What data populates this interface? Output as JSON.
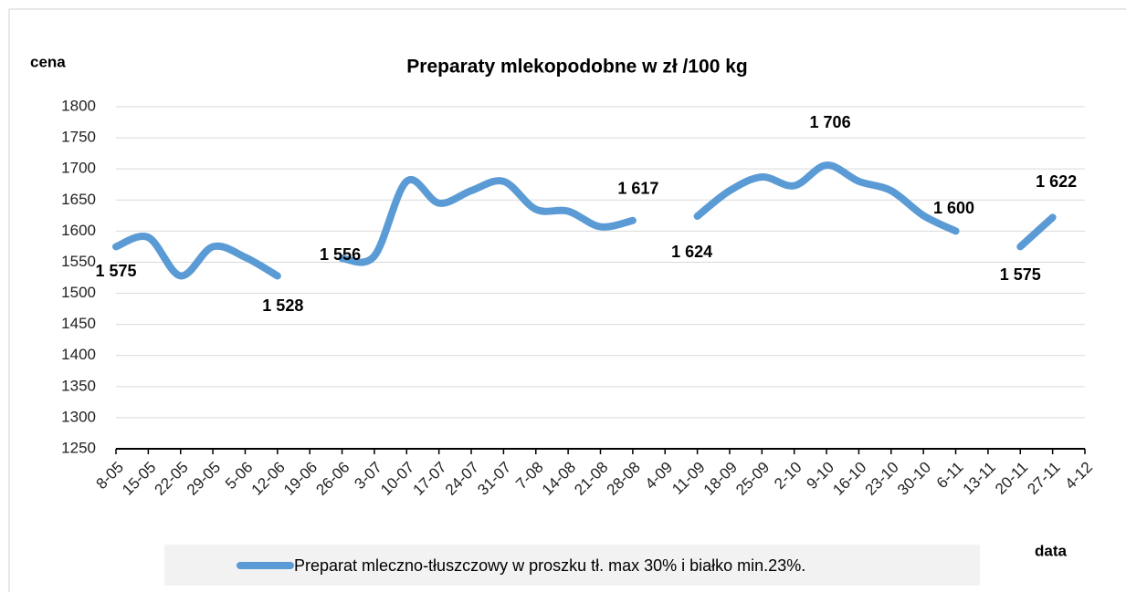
{
  "chart_data": {
    "type": "line",
    "title": "Preparaty mlekopodobne w zł /100 kg",
    "y_label": "cena",
    "x_label": "data",
    "categories": [
      "8-05",
      "15-05",
      "22-05",
      "29-05",
      "5-06",
      "12-06",
      "19-06",
      "26-06",
      "3-07",
      "10-07",
      "17-07",
      "24-07",
      "31-07",
      "7-08",
      "14-08",
      "21-08",
      "28-08",
      "4-09",
      "11-09",
      "18-09",
      "25-09",
      "2-10",
      "9-10",
      "16-10",
      "23-10",
      "30-10",
      "6-11",
      "13-11",
      "20-11",
      "27-11",
      "4-12"
    ],
    "series": [
      {
        "name": "Preparat mleczno-tłuszczowy w proszku tł. max 30% i białko min.23%.",
        "color": "#5b9bd5",
        "values": [
          1575,
          1590,
          1528,
          1575,
          1558,
          1528,
          null,
          1556,
          1560,
          1680,
          1645,
          1665,
          1680,
          1635,
          1632,
          1607,
          1617,
          null,
          1624,
          1665,
          1687,
          1673,
          1706,
          1680,
          1665,
          1625,
          1600,
          null,
          1575,
          1622,
          null
        ],
        "value_labels": [
          "1 575",
          null,
          null,
          null,
          null,
          "1 528",
          null,
          "1 556",
          null,
          null,
          null,
          null,
          null,
          null,
          null,
          null,
          "1 617",
          null,
          "1 624",
          null,
          null,
          null,
          "1 706",
          null,
          null,
          null,
          "1 600",
          null,
          "1 575",
          "1 622",
          null
        ]
      }
    ],
    "ylim": [
      1250,
      1800
    ],
    "yticks": [
      1250,
      1300,
      1350,
      1400,
      1450,
      1500,
      1550,
      1600,
      1650,
      1700,
      1750,
      1800
    ],
    "grid": true
  }
}
